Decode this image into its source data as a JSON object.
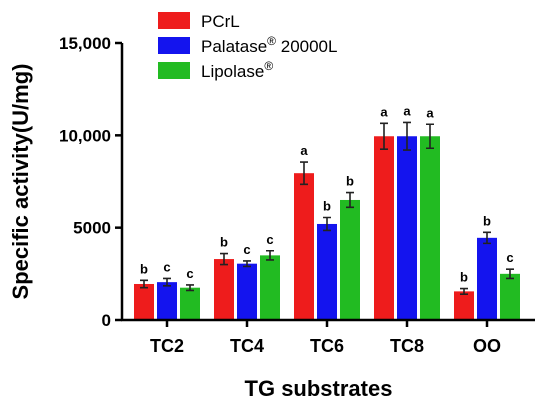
{
  "chart_data": {
    "type": "bar",
    "xlabel": "TG substrates",
    "ylabel": "Specific activity(U/mg)",
    "ylim": [
      0,
      15000
    ],
    "yticks": [
      {
        "value": 0,
        "label": "0"
      },
      {
        "value": 5000,
        "label": "5000"
      },
      {
        "value": 10000,
        "label": "10,000"
      },
      {
        "value": 15000,
        "label": "15,000"
      }
    ],
    "categories": [
      "TC2",
      "TC4",
      "TC6",
      "TC8",
      "OO"
    ],
    "legend_position": "top-left",
    "series": [
      {
        "name": "PCrL",
        "legend_sup": "",
        "color": "#ee1c1c",
        "values": [
          1950,
          3300,
          7950,
          9950,
          1550
        ],
        "errors": [
          200,
          300,
          600,
          700,
          150
        ],
        "significance": [
          "b",
          "b",
          "a",
          "a",
          "b"
        ]
      },
      {
        "name": "Palatase",
        "legend_sup": "®",
        "legend_suffix": " 20000L",
        "color": "#1414ee",
        "values": [
          2050,
          3050,
          5200,
          9950,
          4450
        ],
        "errors": [
          200,
          150,
          350,
          750,
          300
        ],
        "significance": [
          "c",
          "c",
          "b",
          "a",
          "b"
        ]
      },
      {
        "name": "Lipolase",
        "legend_sup": "®",
        "legend_suffix": "",
        "color": "#22bb22",
        "values": [
          1750,
          3500,
          6500,
          9950,
          2500
        ],
        "errors": [
          150,
          250,
          400,
          650,
          250
        ],
        "significance": [
          "c",
          "c",
          "b",
          "a",
          "c"
        ]
      }
    ]
  }
}
